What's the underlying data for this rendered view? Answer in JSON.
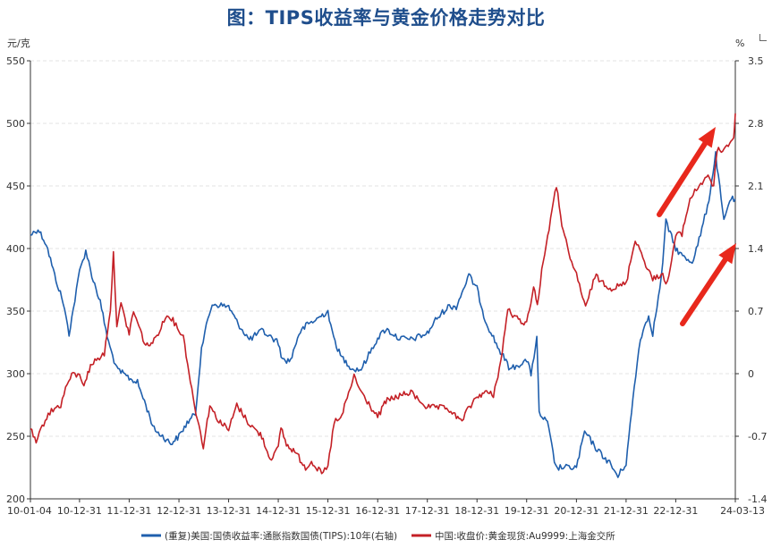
{
  "title": "图：TIPS收益率与黄金价格走势对比",
  "chart_data": {
    "type": "line",
    "title": "图：TIPS收益率与黄金价格走势对比",
    "x_ticks": [
      "10-01-04",
      "10-12-31",
      "11-12-31",
      "12-12-31",
      "13-12-31",
      "14-12-31",
      "15-12-31",
      "16-12-31",
      "17-12-31",
      "18-12-31",
      "19-12-31",
      "20-12-31",
      "21-12-31",
      "22-12-31",
      "24-03-13"
    ],
    "left_axis": {
      "unit": "元/克",
      "min": 200,
      "max": 550,
      "ticks": [
        200,
        250,
        300,
        350,
        400,
        450,
        500,
        550
      ]
    },
    "right_axis": {
      "unit": "%",
      "min": -1.4,
      "max": 3.5,
      "ticks": [
        "-1.4",
        "-0.7",
        "0",
        "0.7",
        "1.4",
        "2.1",
        "2.8",
        "3.5"
      ]
    },
    "grid": "horizontal-dashed",
    "legend_position": "bottom",
    "series": [
      {
        "name": "(重复)美国:国债收益率:通胀指数国债(TIPS):10年(右轴)",
        "axis": "right",
        "color": "#1f5fad",
        "points": [
          [
            "2010-01-04",
            1.55
          ],
          [
            "2010-03-01",
            1.62
          ],
          [
            "2010-05-01",
            1.45
          ],
          [
            "2010-07-01",
            1.1
          ],
          [
            "2010-09-01",
            0.8
          ],
          [
            "2010-10-15",
            0.45
          ],
          [
            "2010-11-15",
            0.72
          ],
          [
            "2011-01-01",
            1.15
          ],
          [
            "2011-02-15",
            1.38
          ],
          [
            "2011-04-01",
            1.1
          ],
          [
            "2011-06-01",
            0.8
          ],
          [
            "2011-08-01",
            0.35
          ],
          [
            "2011-10-01",
            0.05
          ],
          [
            "2011-12-31",
            -0.05
          ],
          [
            "2012-03-01",
            -0.1
          ],
          [
            "2012-05-01",
            -0.35
          ],
          [
            "2012-07-01",
            -0.62
          ],
          [
            "2012-09-01",
            -0.7
          ],
          [
            "2012-11-01",
            -0.78
          ],
          [
            "2012-12-31",
            -0.7
          ],
          [
            "2013-03-01",
            -0.55
          ],
          [
            "2013-05-01",
            -0.45
          ],
          [
            "2013-06-15",
            0.3
          ],
          [
            "2013-08-01",
            0.6
          ],
          [
            "2013-09-01",
            0.78
          ],
          [
            "2013-12-31",
            0.75
          ],
          [
            "2014-03-01",
            0.58
          ],
          [
            "2014-06-01",
            0.38
          ],
          [
            "2014-09-01",
            0.48
          ],
          [
            "2014-12-31",
            0.35
          ],
          [
            "2015-02-01",
            0.15
          ],
          [
            "2015-04-01",
            0.15
          ],
          [
            "2015-06-01",
            0.45
          ],
          [
            "2015-08-01",
            0.55
          ],
          [
            "2015-10-01",
            0.6
          ],
          [
            "2015-12-31",
            0.7
          ],
          [
            "2016-02-01",
            0.45
          ],
          [
            "2016-04-01",
            0.2
          ],
          [
            "2016-07-01",
            0.05
          ],
          [
            "2016-09-01",
            0.05
          ],
          [
            "2016-12-31",
            0.4
          ],
          [
            "2017-03-01",
            0.5
          ],
          [
            "2017-06-01",
            0.4
          ],
          [
            "2017-09-01",
            0.38
          ],
          [
            "2017-12-31",
            0.45
          ],
          [
            "2018-03-01",
            0.6
          ],
          [
            "2018-06-01",
            0.75
          ],
          [
            "2018-08-01",
            0.75
          ],
          [
            "2018-11-01",
            1.1
          ],
          [
            "2018-12-31",
            0.95
          ],
          [
            "2019-03-01",
            0.6
          ],
          [
            "2019-06-01",
            0.3
          ],
          [
            "2019-09-01",
            0.05
          ],
          [
            "2019-12-31",
            0.15
          ],
          [
            "2020-02-01",
            0.0
          ],
          [
            "2020-03-15",
            0.4
          ],
          [
            "2020-04-01",
            -0.45
          ],
          [
            "2020-06-01",
            -0.55
          ],
          [
            "2020-08-01",
            -1.05
          ],
          [
            "2020-12-31",
            -1.05
          ],
          [
            "2021-03-01",
            -0.65
          ],
          [
            "2021-06-01",
            -0.85
          ],
          [
            "2021-09-01",
            -1.0
          ],
          [
            "2021-11-01",
            -1.15
          ],
          [
            "2021-12-31",
            -1.0
          ],
          [
            "2022-03-01",
            -0.15
          ],
          [
            "2022-04-15",
            0.4
          ],
          [
            "2022-06-15",
            0.65
          ],
          [
            "2022-07-15",
            0.45
          ],
          [
            "2022-09-15",
            1.05
          ],
          [
            "2022-10-20",
            1.7
          ],
          [
            "2022-12-31",
            1.4
          ],
          [
            "2023-03-01",
            1.3
          ],
          [
            "2023-05-01",
            1.25
          ],
          [
            "2023-07-01",
            1.55
          ],
          [
            "2023-09-01",
            1.95
          ],
          [
            "2023-10-20",
            2.45
          ],
          [
            "2023-12-20",
            1.7
          ],
          [
            "2024-02-01",
            1.95
          ],
          [
            "2024-03-13",
            1.95
          ]
        ]
      },
      {
        "name": "中国:收盘价:黄金现货:Au9999:上海金交所",
        "axis": "left",
        "color": "#c42026",
        "points": [
          [
            "2010-01-04",
            256
          ],
          [
            "2010-02-15",
            244
          ],
          [
            "2010-04-01",
            258
          ],
          [
            "2010-05-15",
            268
          ],
          [
            "2010-07-01",
            272
          ],
          [
            "2010-08-15",
            275
          ],
          [
            "2010-10-01",
            292
          ],
          [
            "2010-11-15",
            300
          ],
          [
            "2010-12-31",
            298
          ],
          [
            "2011-02-01",
            292
          ],
          [
            "2011-04-01",
            308
          ],
          [
            "2011-05-15",
            312
          ],
          [
            "2011-07-01",
            316
          ],
          [
            "2011-08-15",
            352
          ],
          [
            "2011-09-06",
            395
          ],
          [
            "2011-10-01",
            340
          ],
          [
            "2011-11-01",
            355
          ],
          [
            "2011-12-31",
            332
          ],
          [
            "2012-02-01",
            350
          ],
          [
            "2012-05-01",
            322
          ],
          [
            "2012-07-01",
            326
          ],
          [
            "2012-09-01",
            340
          ],
          [
            "2012-10-15",
            348
          ],
          [
            "2012-12-31",
            335
          ],
          [
            "2013-02-01",
            330
          ],
          [
            "2013-04-15",
            280
          ],
          [
            "2013-06-28",
            242
          ],
          [
            "2013-08-15",
            275
          ],
          [
            "2013-10-01",
            265
          ],
          [
            "2013-12-31",
            255
          ],
          [
            "2014-03-01",
            275
          ],
          [
            "2014-06-01",
            260
          ],
          [
            "2014-09-01",
            250
          ],
          [
            "2014-11-01",
            232
          ],
          [
            "2014-12-31",
            240
          ],
          [
            "2015-01-20",
            258
          ],
          [
            "2015-03-01",
            243
          ],
          [
            "2015-05-01",
            238
          ],
          [
            "2015-07-20",
            225
          ],
          [
            "2015-09-01",
            230
          ],
          [
            "2015-11-15",
            220
          ],
          [
            "2015-12-31",
            225
          ],
          [
            "2016-02-15",
            262
          ],
          [
            "2016-04-01",
            263
          ],
          [
            "2016-07-10",
            298
          ],
          [
            "2016-09-01",
            285
          ],
          [
            "2016-12-31",
            265
          ],
          [
            "2017-03-01",
            278
          ],
          [
            "2017-06-01",
            282
          ],
          [
            "2017-09-01",
            285
          ],
          [
            "2017-12-31",
            273
          ],
          [
            "2018-03-01",
            273
          ],
          [
            "2018-06-01",
            272
          ],
          [
            "2018-09-01",
            262
          ],
          [
            "2018-12-31",
            282
          ],
          [
            "2019-03-01",
            285
          ],
          [
            "2019-05-01",
            283
          ],
          [
            "2019-06-25",
            310
          ],
          [
            "2019-08-15",
            352
          ],
          [
            "2019-10-01",
            345
          ],
          [
            "2019-12-31",
            340
          ],
          [
            "2020-02-20",
            370
          ],
          [
            "2020-03-19",
            355
          ],
          [
            "2020-05-01",
            390
          ],
          [
            "2020-08-06",
            450
          ],
          [
            "2020-09-15",
            420
          ],
          [
            "2020-11-15",
            390
          ],
          [
            "2020-12-31",
            380
          ],
          [
            "2021-03-08",
            352
          ],
          [
            "2021-05-15",
            378
          ],
          [
            "2021-07-15",
            373
          ],
          [
            "2021-09-15",
            368
          ],
          [
            "2021-12-31",
            372
          ],
          [
            "2022-03-08",
            408
          ],
          [
            "2022-05-15",
            390
          ],
          [
            "2022-07-15",
            375
          ],
          [
            "2022-09-15",
            380
          ],
          [
            "2022-10-31",
            372
          ],
          [
            "2022-12-31",
            410
          ],
          [
            "2023-02-15",
            412
          ],
          [
            "2023-04-15",
            440
          ],
          [
            "2023-06-01",
            447
          ],
          [
            "2023-08-15",
            458
          ],
          [
            "2023-10-06",
            450
          ],
          [
            "2023-10-31",
            478
          ],
          [
            "2023-12-31",
            480
          ],
          [
            "2024-02-01",
            485
          ],
          [
            "2024-03-01",
            488
          ],
          [
            "2024-03-13",
            508
          ]
        ]
      }
    ],
    "annotations": [
      "red-arrow-up-gold",
      "red-arrow-up-tips"
    ]
  }
}
